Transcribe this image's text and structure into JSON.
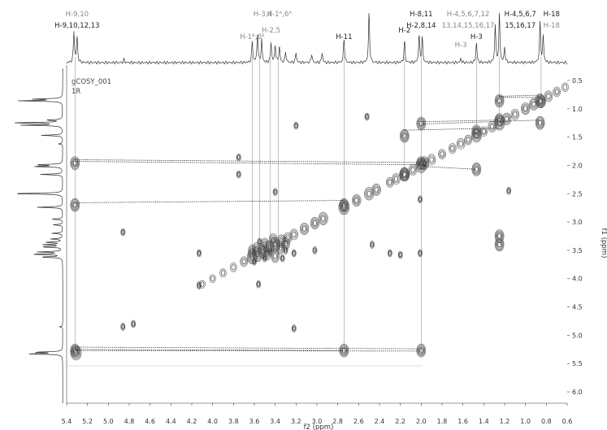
{
  "chart_data": {
    "type": "heatmap",
    "subtype": "2D gCOSY NMR spectrum",
    "dataset_name": "gCOSY_001",
    "dataset_sub": "1R",
    "xlabel": "f2 (ppm)",
    "ylabel": "f1 (ppm)",
    "xlim": [
      5.4,
      0.6
    ],
    "ylim": [
      0.3,
      6.2
    ],
    "x_ticks": [
      5.4,
      5.2,
      5.0,
      4.8,
      4.6,
      4.4,
      4.2,
      4.0,
      3.8,
      3.6,
      3.4,
      3.2,
      3.0,
      2.8,
      2.6,
      2.4,
      2.2,
      2.0,
      1.8,
      1.6,
      1.4,
      1.2,
      1.0,
      0.8,
      0.6
    ],
    "y_ticks": [
      0.5,
      1.0,
      1.5,
      2.0,
      2.5,
      3.0,
      3.5,
      4.0,
      4.5,
      5.0,
      5.5,
      6.0
    ],
    "proton_peaks": [
      {
        "ppm": 5.33,
        "h": 0.62
      },
      {
        "ppm": 5.3,
        "h": 0.52
      },
      {
        "ppm": 4.85,
        "h": 0.06
      },
      {
        "ppm": 3.62,
        "h": 0.42
      },
      {
        "ppm": 3.57,
        "h": 0.58
      },
      {
        "ppm": 3.53,
        "h": 0.45
      },
      {
        "ppm": 3.44,
        "h": 0.4
      },
      {
        "ppm": 3.4,
        "h": 0.35
      },
      {
        "ppm": 3.36,
        "h": 0.32
      },
      {
        "ppm": 3.3,
        "h": 0.22
      },
      {
        "ppm": 3.2,
        "h": 0.2
      },
      {
        "ppm": 3.05,
        "h": 0.18
      },
      {
        "ppm": 2.95,
        "h": 0.2
      },
      {
        "ppm": 2.74,
        "h": 0.48
      },
      {
        "ppm": 2.5,
        "h": 1.0
      },
      {
        "ppm": 2.16,
        "h": 0.42
      },
      {
        "ppm": 2.02,
        "h": 0.55
      },
      {
        "ppm": 1.99,
        "h": 0.5
      },
      {
        "ppm": 1.62,
        "h": 0.08
      },
      {
        "ppm": 1.47,
        "h": 0.4
      },
      {
        "ppm": 1.29,
        "h": 0.75
      },
      {
        "ppm": 1.25,
        "h": 0.95
      },
      {
        "ppm": 1.2,
        "h": 0.3
      },
      {
        "ppm": 0.86,
        "h": 0.8
      },
      {
        "ppm": 0.83,
        "h": 0.52
      }
    ],
    "top_labels": [
      {
        "ppm": 5.3,
        "lines": [
          "H-9,10",
          "H-9,10,12,13"
        ],
        "color": [
          "#888888",
          "#222222"
        ]
      },
      {
        "ppm": 3.62,
        "lines": [
          "H-1ᴮ,6ᴮ"
        ],
        "color": [
          "#888888"
        ],
        "row": 2
      },
      {
        "ppm": 3.52,
        "lines": [
          "H-3,4"
        ],
        "color": [
          "#888888"
        ],
        "row": 0
      },
      {
        "ppm": 3.44,
        "lines": [
          "H-2,5"
        ],
        "color": [
          "#888888"
        ],
        "row": 1
      },
      {
        "ppm": 3.36,
        "lines": [
          "H-1ᴬ,6ᴬ"
        ],
        "color": [
          "#888888"
        ],
        "row": 0
      },
      {
        "ppm": 2.74,
        "lines": [
          "H-11"
        ],
        "color": [
          "#222222"
        ],
        "row": 2
      },
      {
        "ppm": 2.16,
        "lines": [
          "H-2"
        ],
        "color": [
          "#222222"
        ],
        "row": 1
      },
      {
        "ppm": 2.0,
        "lines": [
          "H-8,11",
          "H-2,8,14"
        ],
        "color": [
          "#222222",
          "#222222"
        ]
      },
      {
        "ppm": 1.55,
        "lines": [
          "H-4,5,6,7,12",
          "13,14,15,16,17"
        ],
        "color": [
          "#888888",
          "#888888"
        ]
      },
      {
        "ppm": 1.47,
        "lines": [
          "H-3"
        ],
        "color": [
          "#222222"
        ],
        "row": 2
      },
      {
        "ppm": 1.62,
        "lines": [
          "H-3"
        ],
        "color": [
          "#888888"
        ],
        "row": 3
      },
      {
        "ppm": 1.05,
        "lines": [
          "H-4,5,6,7",
          "15,16,17"
        ],
        "color": [
          "#222222",
          "#222222"
        ]
      },
      {
        "ppm": 0.75,
        "lines": [
          "H-18",
          "H-18"
        ],
        "color": [
          "#222222",
          "#888888"
        ]
      }
    ],
    "cross_peaks": [
      {
        "x": 5.32,
        "y": 1.96
      },
      {
        "x": 5.32,
        "y": 2.7
      },
      {
        "x": 5.32,
        "y": 5.27
      },
      {
        "x": 2.74,
        "y": 2.7
      },
      {
        "x": 2.74,
        "y": 5.27
      },
      {
        "x": 2.0,
        "y": 5.27
      },
      {
        "x": 2.0,
        "y": 1.96
      },
      {
        "x": 1.97,
        "y": 1.96
      },
      {
        "x": 2.16,
        "y": 2.16
      },
      {
        "x": 2.16,
        "y": 1.48
      },
      {
        "x": 2.0,
        "y": 1.26
      },
      {
        "x": 1.47,
        "y": 1.4
      },
      {
        "x": 1.47,
        "y": 2.07
      },
      {
        "x": 1.25,
        "y": 1.2
      },
      {
        "x": 1.25,
        "y": 0.86
      },
      {
        "x": 0.85,
        "y": 0.87
      },
      {
        "x": 0.86,
        "y": 1.25
      },
      {
        "x": 3.75,
        "y": 1.86
      },
      {
        "x": 3.75,
        "y": 2.16
      },
      {
        "x": 3.33,
        "y": 3.64
      },
      {
        "x": 3.5,
        "y": 3.64
      },
      {
        "x": 3.55,
        "y": 3.35
      },
      {
        "x": 3.45,
        "y": 3.5
      },
      {
        "x": 3.4,
        "y": 2.47
      },
      {
        "x": 3.56,
        "y": 4.1
      },
      {
        "x": 3.6,
        "y": 3.7
      },
      {
        "x": 4.86,
        "y": 3.18
      },
      {
        "x": 4.86,
        "y": 4.85
      },
      {
        "x": 4.76,
        "y": 4.8
      },
      {
        "x": 4.13,
        "y": 3.55
      },
      {
        "x": 4.13,
        "y": 4.12
      },
      {
        "x": 3.22,
        "y": 4.88
      },
      {
        "x": 3.22,
        "y": 3.55
      },
      {
        "x": 3.2,
        "y": 1.3
      },
      {
        "x": 2.52,
        "y": 1.14
      },
      {
        "x": 2.47,
        "y": 3.4
      },
      {
        "x": 2.3,
        "y": 3.55
      },
      {
        "x": 2.2,
        "y": 3.58
      },
      {
        "x": 2.01,
        "y": 2.6
      },
      {
        "x": 2.01,
        "y": 3.55
      },
      {
        "x": 1.25,
        "y": 3.25
      },
      {
        "x": 1.25,
        "y": 3.4
      },
      {
        "x": 1.16,
        "y": 2.45
      },
      {
        "x": 3.02,
        "y": 3.5
      },
      {
        "x": 3.3,
        "y": 3.5
      }
    ],
    "correlations": [
      {
        "x1": 5.32,
        "y1": 1.9,
        "x2": 2.0,
        "y2": 1.95
      },
      {
        "x1": 5.32,
        "y1": 1.93,
        "x2": 1.97,
        "y2": 1.99
      },
      {
        "x1": 5.32,
        "y1": 2.66,
        "x2": 2.74,
        "y2": 2.62
      },
      {
        "x1": 5.32,
        "y1": 5.21,
        "x2": 2.0,
        "y2": 5.24
      },
      {
        "x1": 5.32,
        "y1": 5.25,
        "x2": 2.74,
        "y2": 5.27
      },
      {
        "x1": 5.32,
        "y1": 5.27,
        "x2": 2.0,
        "y2": 5.28
      },
      {
        "x1": 2.0,
        "y1": 1.23,
        "x2": 1.25,
        "y2": 1.2
      },
      {
        "x1": 2.0,
        "y1": 1.27,
        "x2": 0.86,
        "y2": 1.2
      },
      {
        "x1": 2.16,
        "y1": 1.38,
        "x2": 1.25,
        "y2": 1.34
      },
      {
        "x1": 1.97,
        "y1": 2.02,
        "x2": 1.47,
        "y2": 2.07
      },
      {
        "x1": 1.25,
        "y1": 0.8,
        "x2": 0.85,
        "y2": 0.8
      },
      {
        "x1": 1.25,
        "y1": 0.78,
        "x2": 0.87,
        "y2": 0.76
      }
    ]
  }
}
